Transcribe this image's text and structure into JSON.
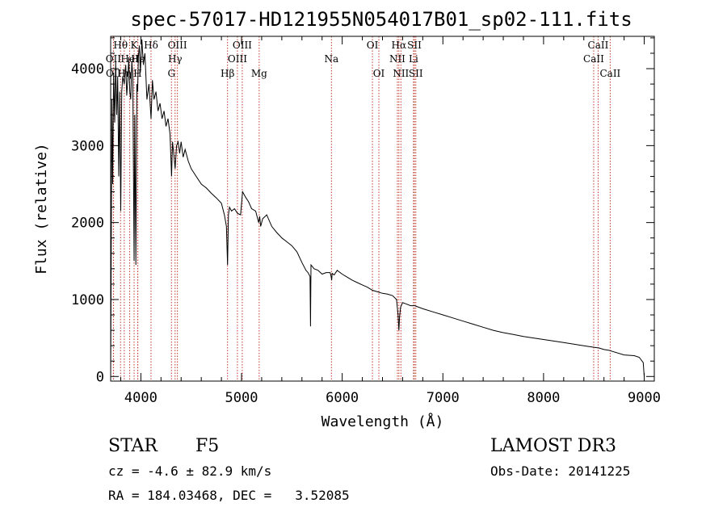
{
  "chart_data": {
    "type": "line",
    "title": "spec-57017-HD121955N054017B01_sp02-111.fits",
    "xlabel": "Wavelength (Å)",
    "ylabel": "Flux (relative)",
    "xlim": [
      3700,
      9100
    ],
    "ylim": [
      -60,
      4420
    ],
    "xticks": [
      4000,
      5000,
      6000,
      7000,
      8000,
      9000
    ],
    "yticks": [
      0,
      1000,
      2000,
      3000,
      4000
    ],
    "series": [
      {
        "name": "spectrum",
        "x": [
          3700,
          3705,
          3712,
          3720,
          3730,
          3740,
          3750,
          3760,
          3770,
          3780,
          3790,
          3800,
          3810,
          3820,
          3835,
          3850,
          3860,
          3870,
          3880,
          3890,
          3900,
          3910,
          3920,
          3933,
          3940,
          3950,
          3960,
          3968,
          3975,
          3985,
          3995,
          4010,
          4025,
          4040,
          4060,
          4080,
          4101,
          4115,
          4130,
          4150,
          4170,
          4190,
          4210,
          4230,
          4250,
          4270,
          4290,
          4305,
          4315,
          4330,
          4340,
          4355,
          4370,
          4385,
          4400,
          4420,
          4440,
          4470,
          4500,
          4550,
          4600,
          4650,
          4700,
          4750,
          4800,
          4830,
          4850,
          4861,
          4870,
          4880,
          4900,
          4930,
          4960,
          4990,
          5010,
          5040,
          5070,
          5100,
          5140,
          5170,
          5180,
          5190,
          5210,
          5250,
          5300,
          5350,
          5400,
          5450,
          5500,
          5550,
          5600,
          5640,
          5660,
          5680,
          5685,
          5690,
          5720,
          5760,
          5800,
          5840,
          5880,
          5890,
          5895,
          5900,
          5920,
          5950,
          6000,
          6050,
          6100,
          6150,
          6200,
          6250,
          6300,
          6350,
          6400,
          6450,
          6500,
          6540,
          6555,
          6563,
          6570,
          6580,
          6600,
          6640,
          6680,
          6720,
          6800,
          6900,
          7000,
          7100,
          7200,
          7300,
          7400,
          7500,
          7600,
          7700,
          7800,
          7900,
          8000,
          8100,
          8200,
          8300,
          8400,
          8500,
          8550,
          8600,
          8650,
          8700,
          8800,
          8900,
          8950,
          8990,
          9000
        ],
        "y": [
          0,
          1400,
          3600,
          2500,
          3950,
          3300,
          4100,
          3400,
          3900,
          2600,
          3700,
          2150,
          3700,
          3900,
          3800,
          4050,
          3650,
          3850,
          4150,
          3700,
          3600,
          4100,
          3900,
          1500,
          3400,
          1450,
          3800,
          3700,
          4150,
          4300,
          3950,
          4380,
          4050,
          4200,
          3600,
          3800,
          3350,
          3850,
          3600,
          3700,
          3450,
          3550,
          3350,
          3450,
          3250,
          3350,
          3150,
          2600,
          3050,
          2850,
          2700,
          3000,
          3050,
          2900,
          3050,
          2850,
          2950,
          2800,
          2700,
          2600,
          2500,
          2450,
          2380,
          2320,
          2250,
          2100,
          1950,
          1450,
          2100,
          2200,
          2150,
          2180,
          2120,
          2100,
          2400,
          2330,
          2270,
          2180,
          2150,
          2000,
          2080,
          1950,
          2050,
          2100,
          1950,
          1870,
          1800,
          1750,
          1700,
          1620,
          1480,
          1380,
          1350,
          1300,
          650,
          1450,
          1400,
          1380,
          1330,
          1350,
          1350,
          1300,
          1250,
          1340,
          1320,
          1380,
          1330,
          1290,
          1250,
          1220,
          1190,
          1160,
          1120,
          1100,
          1080,
          1070,
          1050,
          1000,
          800,
          600,
          780,
          900,
          960,
          940,
          920,
          920,
          880,
          840,
          800,
          760,
          720,
          680,
          640,
          600,
          570,
          545,
          520,
          500,
          480,
          460,
          440,
          420,
          400,
          380,
          370,
          350,
          340,
          320,
          280,
          270,
          250,
          180,
          0
        ]
      }
    ],
    "line_markers": [
      {
        "label": "Hθ",
        "x": 3798,
        "row": 1
      },
      {
        "label": "OII",
        "x": 3727,
        "row": 2
      },
      {
        "label": "OII",
        "x": 3729,
        "row": 3
      },
      {
        "label": "Hη",
        "x": 3835,
        "row": 3
      },
      {
        "label": "HeI",
        "x": 3889,
        "row": 2
      },
      {
        "label": "K",
        "x": 3933,
        "row": 1
      },
      {
        "label": "H",
        "x": 3968,
        "row": 3
      },
      {
        "label": "Hε",
        "x": 3970,
        "row": 2
      },
      {
        "label": "Hδ",
        "x": 4101,
        "row": 1
      },
      {
        "label": "OIII",
        "x": 4363,
        "row": 1
      },
      {
        "label": "Hγ",
        "x": 4340,
        "row": 2
      },
      {
        "label": "G",
        "x": 4304,
        "row": 3
      },
      {
        "label": "Hβ",
        "x": 4861,
        "row": 3
      },
      {
        "label": "OIII",
        "x": 5007,
        "row": 1
      },
      {
        "label": "OIII",
        "x": 4959,
        "row": 2
      },
      {
        "label": "Mg",
        "x": 5175,
        "row": 3
      },
      {
        "label": "Na",
        "x": 5893,
        "row": 2
      },
      {
        "label": "OI",
        "x": 6300,
        "row": 1
      },
      {
        "label": "OI",
        "x": 6364,
        "row": 3
      },
      {
        "label": "Hα",
        "x": 6563,
        "row": 1
      },
      {
        "label": "NII",
        "x": 6548,
        "row": 2
      },
      {
        "label": "NII",
        "x": 6583,
        "row": 3
      },
      {
        "label": "SII",
        "x": 6717,
        "row": 1
      },
      {
        "label": "Li",
        "x": 6708,
        "row": 2
      },
      {
        "label": "SII",
        "x": 6731,
        "row": 3
      },
      {
        "label": "CaII",
        "x": 8542,
        "row": 1
      },
      {
        "label": "CaII",
        "x": 8498,
        "row": 2
      },
      {
        "label": "CaII",
        "x": 8662,
        "row": 3
      }
    ]
  },
  "info": {
    "class_label": "STAR",
    "subclass": "F5",
    "survey": "LAMOST DR3",
    "cz": "cz = -4.6 ± 82.9 km/s",
    "obs_date": "Obs-Date: 20141225",
    "coords": "RA = 184.03468, DEC =   3.52085"
  },
  "colors": {
    "axis": "#000000",
    "spectrum": "#000000",
    "marker": "#c0392b"
  }
}
